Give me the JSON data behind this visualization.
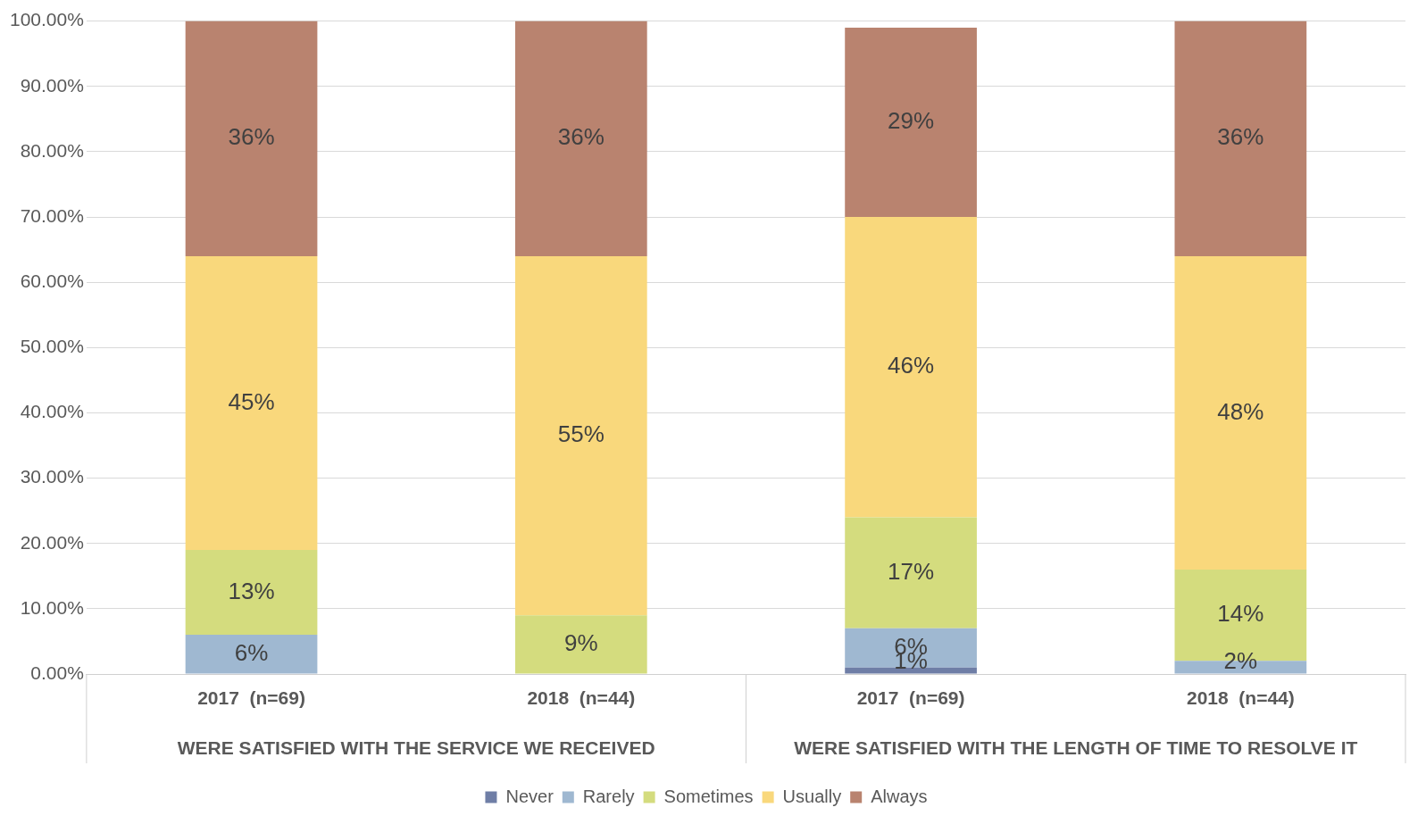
{
  "chart_data": {
    "type": "bar",
    "stacked": true,
    "categories": [
      "2017  (n=69)",
      "2018  (n=44)",
      "2017  (n=69)",
      "2018  (n=44)"
    ],
    "series": [
      {
        "name": "Never",
        "color": "#6f7ea6",
        "values": [
          null,
          null,
          1,
          null
        ],
        "value_labels": [
          null,
          null,
          "1%",
          null
        ]
      },
      {
        "name": "Rarely",
        "color": "#9fb8d1",
        "values": [
          6,
          null,
          6,
          2
        ],
        "value_labels": [
          "6%",
          null,
          "6%",
          "2%"
        ]
      },
      {
        "name": "Sometimes",
        "color": "#d4dc7e",
        "values": [
          13,
          9,
          17,
          14
        ],
        "value_labels": [
          "13%",
          "9%",
          "17%",
          "14%"
        ]
      },
      {
        "name": "Usually",
        "color": "#f9d87c",
        "values": [
          45,
          55,
          46,
          48
        ],
        "value_labels": [
          "45%",
          "55%",
          "46%",
          "48%"
        ]
      },
      {
        "name": "Always",
        "color": "#b9836f",
        "values": [
          36,
          36,
          29,
          36
        ],
        "value_labels": [
          "36%",
          "36%",
          "29%",
          "36%"
        ]
      }
    ],
    "ylim": [
      0,
      100
    ],
    "yticks": [
      {
        "value": 0,
        "label": "0.00%"
      },
      {
        "value": 10,
        "label": "10.00%"
      },
      {
        "value": 20,
        "label": "20.00%"
      },
      {
        "value": 30,
        "label": "30.00%"
      },
      {
        "value": 40,
        "label": "40.00%"
      },
      {
        "value": 50,
        "label": "50.00%"
      },
      {
        "value": 60,
        "label": "60.00%"
      },
      {
        "value": 70,
        "label": "70.00%"
      },
      {
        "value": 80,
        "label": "80.00%"
      },
      {
        "value": 90,
        "label": "90.00%"
      },
      {
        "value": 100,
        "label": "100.00%"
      }
    ],
    "grid": "y",
    "legend": "bottom",
    "annotations": [
      "WERE SATISFIED WITH THE SERVICE WE RECEIVED",
      "WERE SATISFIED WITH THE LENGTH OF TIME TO RESOLVE IT"
    ]
  }
}
